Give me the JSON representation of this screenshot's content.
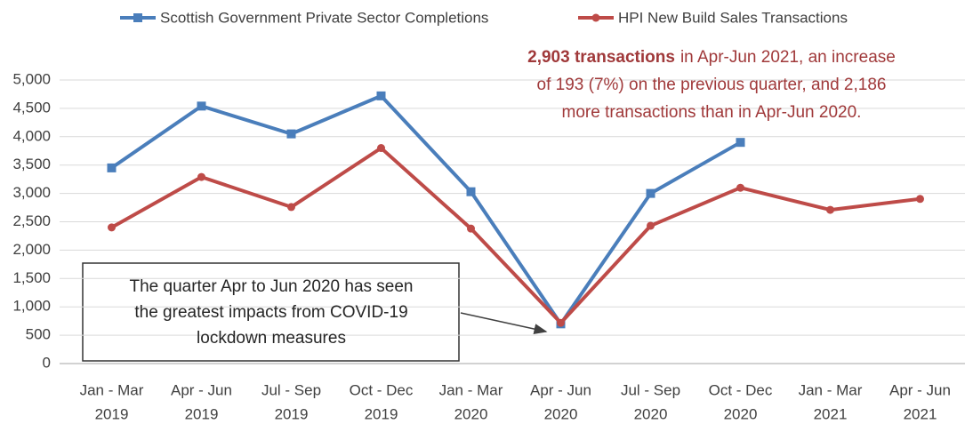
{
  "chart_data": {
    "type": "line",
    "categories": [
      [
        "Jan - Mar",
        "2019"
      ],
      [
        "Apr - Jun",
        "2019"
      ],
      [
        "Jul - Sep",
        "2019"
      ],
      [
        "Oct - Dec",
        "2019"
      ],
      [
        "Jan - Mar",
        "2020"
      ],
      [
        "Apr - Jun",
        "2020"
      ],
      [
        "Jul - Sep",
        "2020"
      ],
      [
        "Oct - Dec",
        "2020"
      ],
      [
        "Jan - Mar",
        "2021"
      ],
      [
        "Apr - Jun",
        "2021"
      ]
    ],
    "series": [
      {
        "name": "Scottish Government Private Sector Completions",
        "color": "#4a7ebb",
        "marker": "square",
        "values": [
          3450,
          4540,
          4050,
          4720,
          3030,
          700,
          3000,
          3900,
          null,
          null
        ]
      },
      {
        "name": "HPI New Build Sales Transactions",
        "color": "#be4b48",
        "marker": "circle",
        "values": [
          2400,
          3290,
          2760,
          3800,
          2380,
          717,
          2430,
          3100,
          2710,
          2903
        ]
      }
    ],
    "ylim": [
      0,
      5000
    ],
    "yticks": [
      0,
      500,
      {
        "value": 1000,
        "label": "1,000"
      },
      {
        "value": 1500,
        "label": "1,500"
      },
      {
        "value": 2000,
        "label": "2,000"
      },
      {
        "value": 2500,
        "label": "2,500"
      },
      {
        "value": 3000,
        "label": "3,000"
      },
      {
        "value": 3500,
        "label": "3,500"
      },
      {
        "value": 4000,
        "label": "4,000"
      },
      {
        "value": 4500,
        "label": "4,500"
      },
      {
        "value": 5000,
        "label": "5,000"
      }
    ],
    "grid": true,
    "legend": "top",
    "annotations": [
      {
        "bold": "2,903 transactions",
        "lines": [
          "in Apr-Jun 2021, an increase",
          "of 193 (7%) on the previous quarter, and 2,186",
          "more transactions than in Apr-Jun 2020."
        ],
        "color": "#a0393a"
      },
      {
        "lines": [
          "The quarter Apr to Jun 2020 has seen",
          "the greatest impacts from COVID-19",
          "lockdown measures"
        ]
      }
    ]
  }
}
